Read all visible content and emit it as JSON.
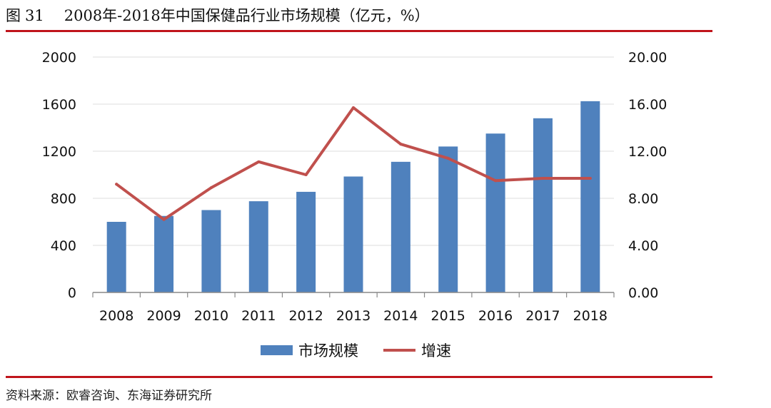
{
  "figure": {
    "label": "图",
    "number": "31",
    "title": "2008年-2018年中国保健品行业市场规模（亿元，%）",
    "source": "资料来源：欧睿咨询、东海证券研究所"
  },
  "colors": {
    "bar": "#4f81bd",
    "line": "#c0504d",
    "rule": "#c0141b",
    "axis": "#888888"
  },
  "chart_data": {
    "type": "bar",
    "title": "",
    "categories": [
      "2008",
      "2009",
      "2010",
      "2011",
      "2012",
      "2013",
      "2014",
      "2015",
      "2016",
      "2017",
      "2018"
    ],
    "series": [
      {
        "name": "市场规模",
        "type": "bar",
        "axis": "left",
        "values": [
          600,
          650,
          700,
          775,
          855,
          985,
          1110,
          1240,
          1350,
          1480,
          1625
        ]
      },
      {
        "name": "增速",
        "type": "line",
        "axis": "right",
        "values": [
          9.2,
          6.2,
          8.9,
          11.1,
          10.0,
          15.7,
          12.6,
          11.4,
          9.5,
          9.7,
          9.7
        ]
      }
    ],
    "y_left": {
      "range": [
        0,
        2000
      ],
      "ticks": [
        "0",
        "400",
        "800",
        "1200",
        "1600",
        "2000"
      ]
    },
    "y_right": {
      "range": [
        0,
        20
      ],
      "ticks": [
        "0.00",
        "4.00",
        "8.00",
        "12.00",
        "16.00",
        "20.00"
      ]
    },
    "grid": true,
    "legend": "bottom"
  }
}
